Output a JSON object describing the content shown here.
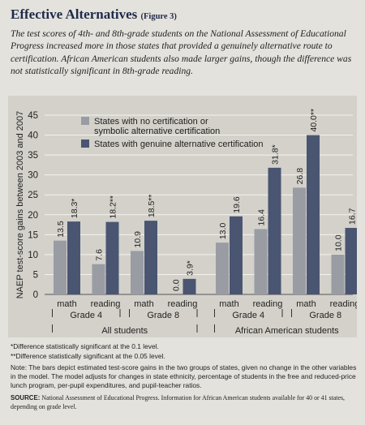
{
  "header": {
    "title": "Effective Alternatives",
    "figure_label": "(Figure 3)",
    "description": "The test scores of 4th- and 8th-grade students on the National Assessment of Educational Progress increased more in those states that provided a genuinely alternative route to certification. African American students also made larger gains, though the difference was not statistically significant in 8th-grade reading."
  },
  "chart_data": {
    "type": "bar",
    "ylabel": "NAEP test-score gains between 2003 and 2007",
    "ylim": [
      0,
      45
    ],
    "yticks": [
      0,
      5,
      10,
      15,
      20,
      25,
      30,
      35,
      40,
      45
    ],
    "series": [
      {
        "name": "States with no certification or symbolic alternative certification",
        "color": "#9a9ca4"
      },
      {
        "name": "States with genuine alternative certification",
        "color": "#4a5572"
      }
    ],
    "groups": [
      {
        "population": "All students",
        "grade": "Grade 4",
        "subject": "math",
        "values": [
          13.5,
          18.3
        ],
        "labels": [
          "13.5",
          "18.3*"
        ]
      },
      {
        "population": "All students",
        "grade": "Grade 4",
        "subject": "reading",
        "values": [
          7.6,
          18.2
        ],
        "labels": [
          "7.6",
          "18.2**"
        ]
      },
      {
        "population": "All students",
        "grade": "Grade 8",
        "subject": "math",
        "values": [
          10.9,
          18.5
        ],
        "labels": [
          "10.9",
          "18.5**"
        ]
      },
      {
        "population": "All students",
        "grade": "Grade 8",
        "subject": "reading",
        "values": [
          0.0,
          3.9
        ],
        "labels": [
          "0.0",
          "3.9*"
        ]
      },
      {
        "population": "African American students",
        "grade": "Grade 4",
        "subject": "math",
        "values": [
          13.0,
          19.6
        ],
        "labels": [
          "13.0",
          "19.6"
        ]
      },
      {
        "population": "African American students",
        "grade": "Grade 4",
        "subject": "reading",
        "values": [
          16.4,
          31.8
        ],
        "labels": [
          "16.4",
          "31.8*"
        ]
      },
      {
        "population": "African American students",
        "grade": "Grade 8",
        "subject": "math",
        "values": [
          26.8,
          40.0
        ],
        "labels": [
          "26.8",
          "40.0**"
        ]
      },
      {
        "population": "African American students",
        "grade": "Grade 8",
        "subject": "reading",
        "values": [
          10.0,
          16.7
        ],
        "labels": [
          "10.0",
          "16.7"
        ]
      }
    ],
    "grade_labels": [
      {
        "population": "All students",
        "grades": [
          "Grade 4",
          "Grade 8"
        ]
      },
      {
        "population": "African American students",
        "grades": [
          "Grade 4",
          "Grade 8"
        ]
      }
    ],
    "population_labels": [
      "All students",
      "African American students"
    ],
    "legend": {
      "position": "top",
      "lines": [
        [
          "States with no certification or",
          "symbolic alternative certification"
        ],
        [
          "States with genuine alternative certification"
        ]
      ]
    },
    "grid": true
  },
  "footnotes": {
    "note1": "*Difference statistically significant at the 0.1 level.",
    "note2": "**Difference statistically significant at the 0.05 level.",
    "note3": "Note: The bars depict estimated test-score gains in the two groups of states, given no change in the other variables in the model. The model adjusts for changes in state ethnicity, percentage of students in the free and reduced-price lunch program, per-pupil expenditures, and pupil-teacher ratios.",
    "source_label": "SOURCE:",
    "source_text": "National Assessment of Educational Progress. Information for African American students available for 40 or 41 states, depending on grade level."
  }
}
